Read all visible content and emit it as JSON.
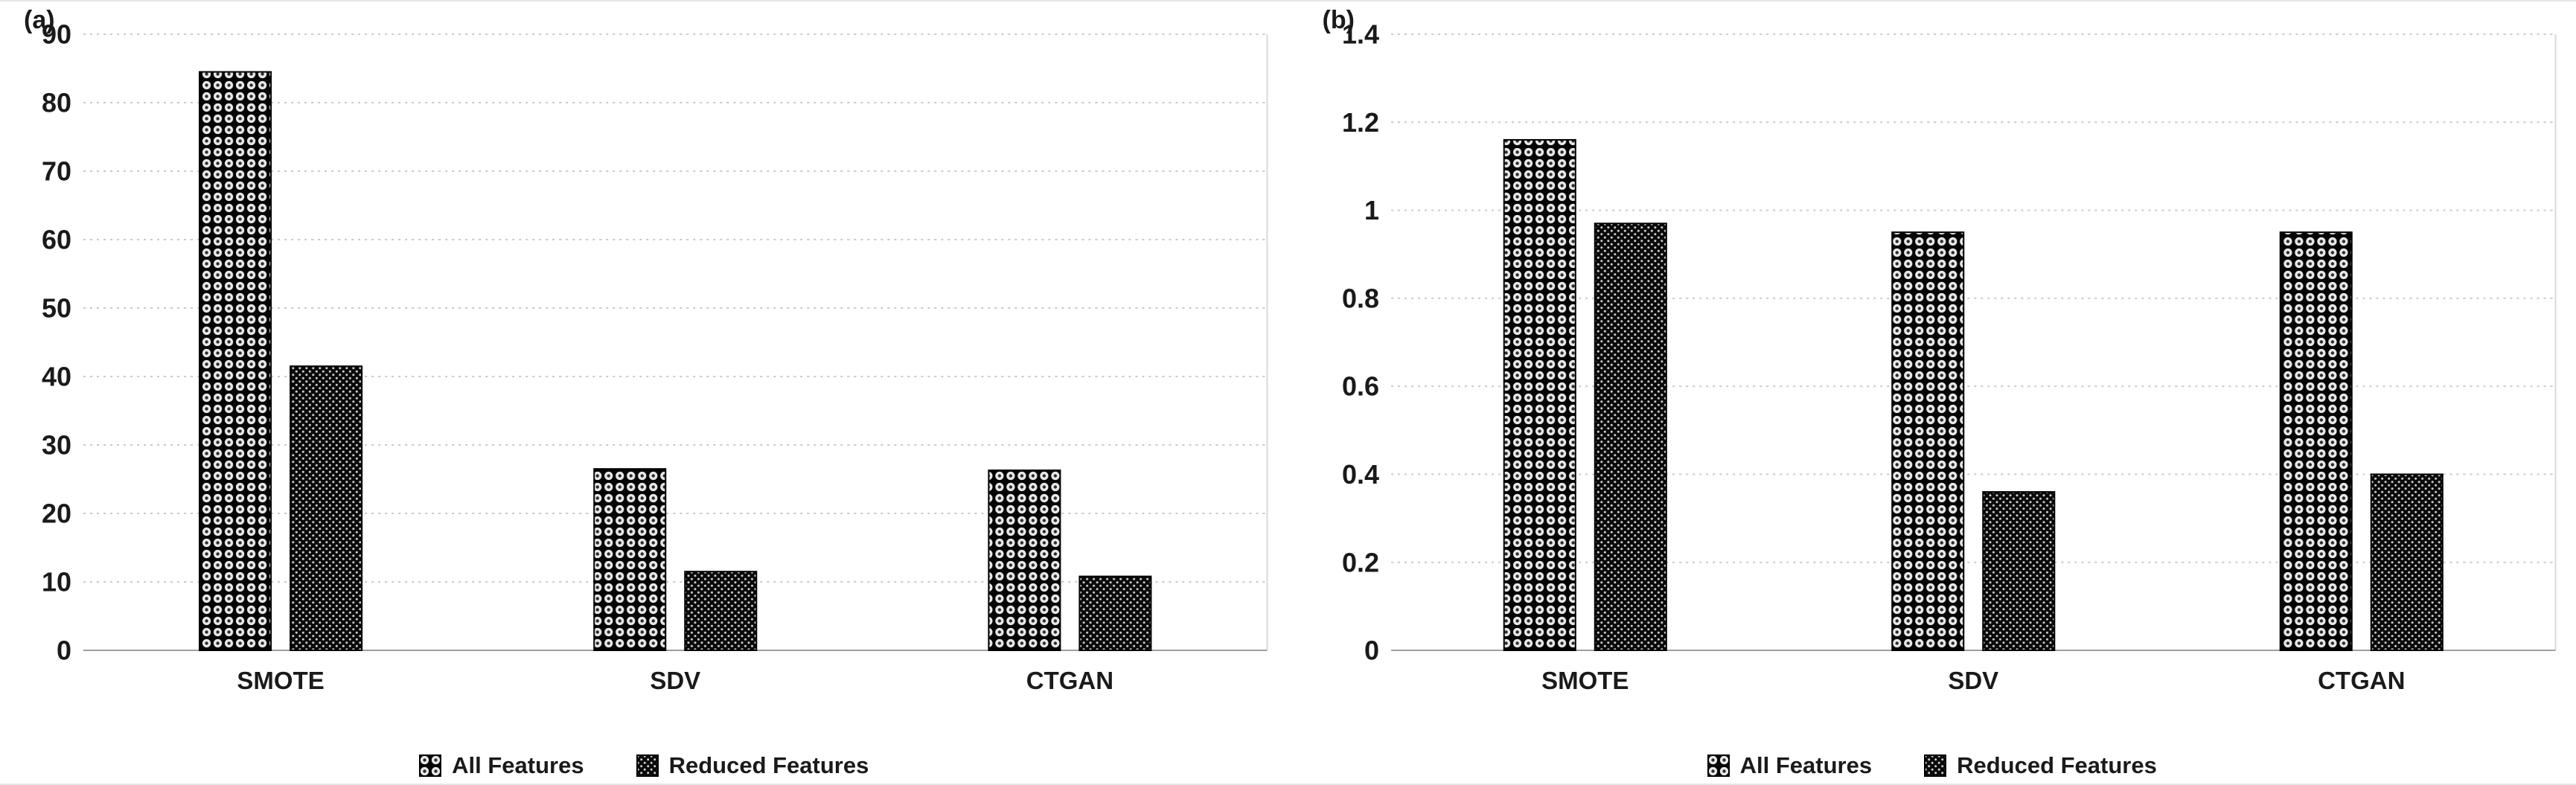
{
  "figure": {
    "background": "#ffffff"
  },
  "colors": {
    "bar_base": "#0a0a0a",
    "pattern_light": "#ededed",
    "grid": "#c9c9c9",
    "axis": "#9f9f9f",
    "text": "#1a1a1a"
  },
  "legend": {
    "items": [
      {
        "label": "All Features",
        "pattern": "sphere-grid"
      },
      {
        "label": "Reduced Features",
        "pattern": "dense-dots"
      }
    ]
  },
  "chart_data": [
    {
      "type": "bar",
      "panel_label": "(a)",
      "title": "",
      "xlabel": "",
      "ylabel": "",
      "categories": [
        "SMOTE",
        "SDV",
        "CTGAN"
      ],
      "series": [
        {
          "name": "All Features",
          "pattern": "sphere-grid",
          "values": [
            84.5,
            26.5,
            26.3
          ]
        },
        {
          "name": "Reduced Features",
          "pattern": "dense-dots",
          "values": [
            41.5,
            11.5,
            10.8
          ]
        }
      ],
      "ylim": [
        0,
        90
      ],
      "ytick_step": 10,
      "ytick_labels": [
        "0",
        "10",
        "20",
        "30",
        "40",
        "50",
        "60",
        "70",
        "80",
        "90"
      ],
      "grid": true,
      "legend_position": "bottom"
    },
    {
      "type": "bar",
      "panel_label": "(b)",
      "title": "",
      "xlabel": "",
      "ylabel": "",
      "categories": [
        "SMOTE",
        "SDV",
        "CTGAN"
      ],
      "series": [
        {
          "name": "All Features",
          "pattern": "sphere-grid",
          "values": [
            1.16,
            0.95,
            0.95
          ]
        },
        {
          "name": "Reduced Features",
          "pattern": "dense-dots",
          "values": [
            0.97,
            0.36,
            0.4
          ]
        }
      ],
      "ylim": [
        0,
        1.4
      ],
      "ytick_step": 0.2,
      "ytick_labels": [
        "0",
        "0.2",
        "0.4",
        "0.6",
        "0.8",
        "1",
        "1.2",
        "1.4"
      ],
      "grid": true,
      "legend_position": "bottom"
    }
  ]
}
